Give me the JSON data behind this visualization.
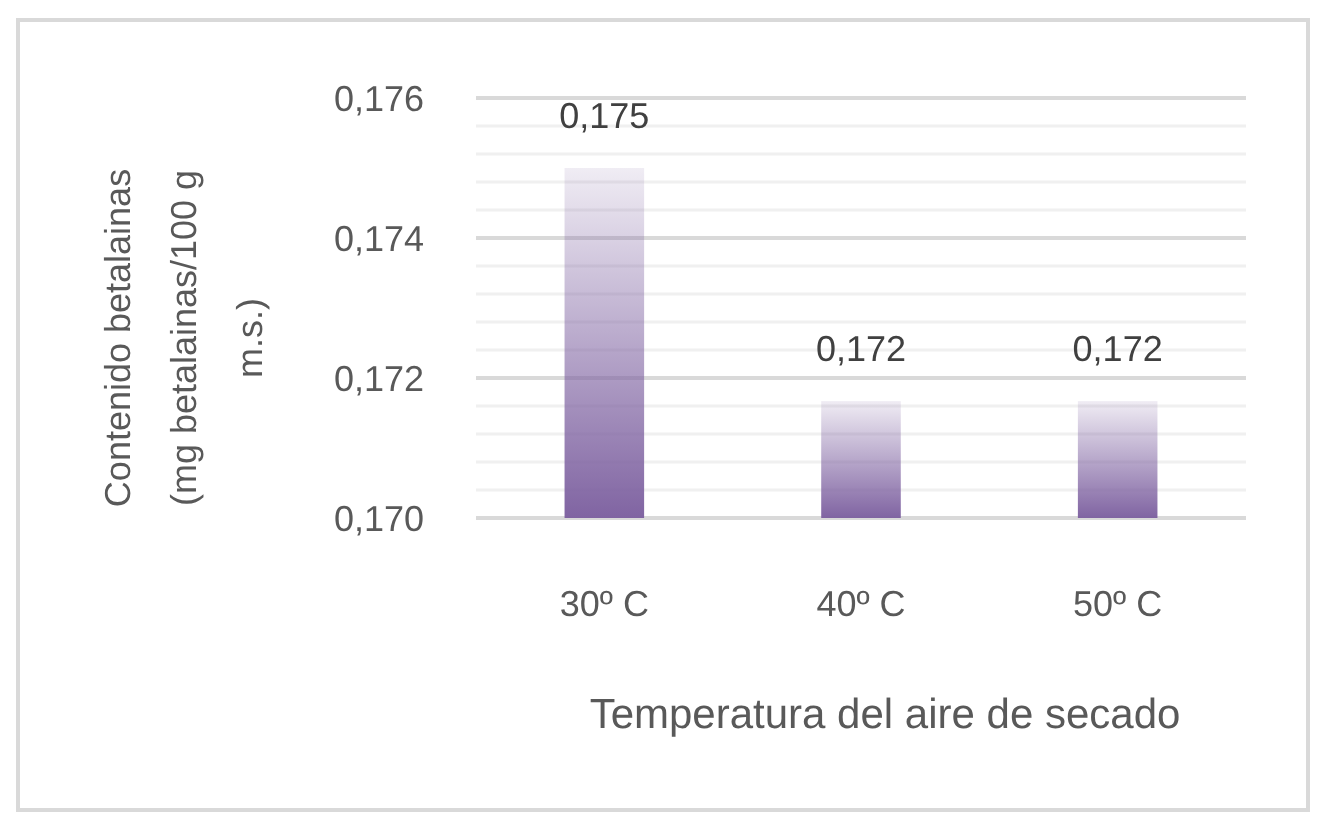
{
  "chart_data": {
    "type": "bar",
    "categories": [
      "30º C",
      "40º C",
      "50º C"
    ],
    "values": [
      0.175,
      0.17167,
      0.17167
    ],
    "value_labels": [
      "0,175",
      "0,172",
      "0,172"
    ],
    "color": "#8064a2",
    "xlabel": "Temperatura del aire de secado",
    "ylabel": "Contenido betalainas (mg betalainas/100 g m.s.)",
    "ylim": [
      0.17,
      0.176
    ],
    "yticks": [
      {
        "value": 0.17,
        "label": "0,170"
      },
      {
        "value": 0.1704,
        "label": null
      },
      {
        "value": 0.1708,
        "label": null
      },
      {
        "value": 0.1712,
        "label": null
      },
      {
        "value": 0.1716,
        "label": null
      },
      {
        "value": 0.172,
        "label": "0,172"
      },
      {
        "value": 0.1724,
        "label": null
      },
      {
        "value": 0.1728,
        "label": null
      },
      {
        "value": 0.1732,
        "label": null
      },
      {
        "value": 0.1736,
        "label": null
      },
      {
        "value": 0.174,
        "label": "0,174"
      },
      {
        "value": 0.1744,
        "label": null
      },
      {
        "value": 0.1748,
        "label": null
      },
      {
        "value": 0.1752,
        "label": null
      },
      {
        "value": 0.1756,
        "label": null
      },
      {
        "value": 0.176,
        "label": "0,176"
      }
    ],
    "grid": "y"
  }
}
